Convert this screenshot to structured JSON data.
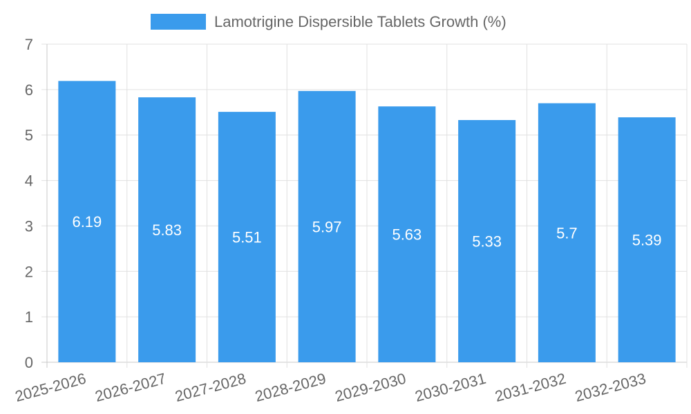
{
  "chart_data": {
    "type": "bar",
    "categories": [
      "2025-2026",
      "2026-2027",
      "2027-2028",
      "2028-2029",
      "2029-2030",
      "2030-2031",
      "2031-2032",
      "2032-2033"
    ],
    "series": [
      {
        "name": "Lamotrigine Dispersible Tablets Growth (%)",
        "values": [
          6.19,
          5.83,
          5.51,
          5.97,
          5.63,
          5.33,
          5.7,
          5.39
        ],
        "labels": [
          "6.19",
          "5.83",
          "5.51",
          "5.97",
          "5.63",
          "5.33",
          "5.7",
          "5.39"
        ]
      }
    ],
    "title": "",
    "xlabel": "",
    "ylabel": "",
    "ylim": [
      0,
      7
    ],
    "yticks": [
      "0",
      "1",
      "2",
      "3",
      "4",
      "5",
      "6",
      "7"
    ],
    "grid": true,
    "legend_position": "top-center",
    "colors": {
      "bar": "#3a9bec",
      "grid": "#e0e0e0",
      "axis": "#c8c8c8",
      "text": "#666666",
      "bar_label": "#ffffff"
    }
  }
}
